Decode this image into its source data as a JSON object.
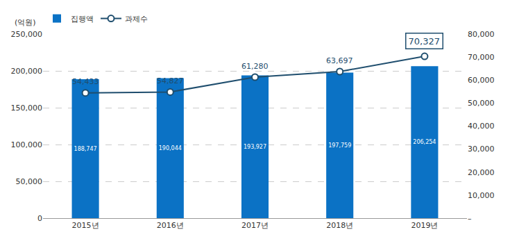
{
  "chart_data": {
    "type": "bar",
    "ylabel": "(억원)",
    "categories": [
      "2015년",
      "2016년",
      "2017년",
      "2018년",
      "2019년"
    ],
    "series": [
      {
        "name": "집행액",
        "type": "bar",
        "color": "#0b72c5",
        "values": [
          188747,
          190044,
          193927,
          197759,
          206254
        ],
        "value_labels": [
          "188,747",
          "190,044",
          "193,927",
          "197,759",
          "206,254"
        ]
      },
      {
        "name": "과제수",
        "type": "line",
        "axis": "y2",
        "color": "#1f4e6e",
        "marker": "circle",
        "values": [
          54433,
          54827,
          61280,
          63697,
          70327
        ],
        "value_labels": [
          "54,433",
          "54,827",
          "61,280",
          "63,697",
          "70,327"
        ]
      }
    ],
    "ylim": [
      0,
      250000
    ],
    "yticks": [
      0,
      {
        "value": 50000,
        "label": "50,000"
      },
      {
        "value": 100000,
        "label": "100,000"
      },
      {
        "value": 150000,
        "label": "150,000"
      },
      {
        "value": 200000,
        "label": "200,000"
      },
      {
        "value": 250000,
        "label": "250,000"
      }
    ],
    "y2lim": [
      0,
      80000
    ],
    "y2ticks": [
      {
        "value": 0,
        "label": "–"
      },
      {
        "value": 10000,
        "label": "10,000"
      },
      {
        "value": 20000,
        "label": "20,000"
      },
      {
        "value": 30000,
        "label": "30,000"
      },
      {
        "value": 40000,
        "label": "40,000"
      },
      {
        "value": 50000,
        "label": "50,000"
      },
      {
        "value": 60000,
        "label": "60,000"
      },
      {
        "value": 70000,
        "label": "70,000"
      },
      {
        "value": 80000,
        "label": "80,000"
      }
    ],
    "grid": true,
    "legend": "top left",
    "data_labels": true
  }
}
